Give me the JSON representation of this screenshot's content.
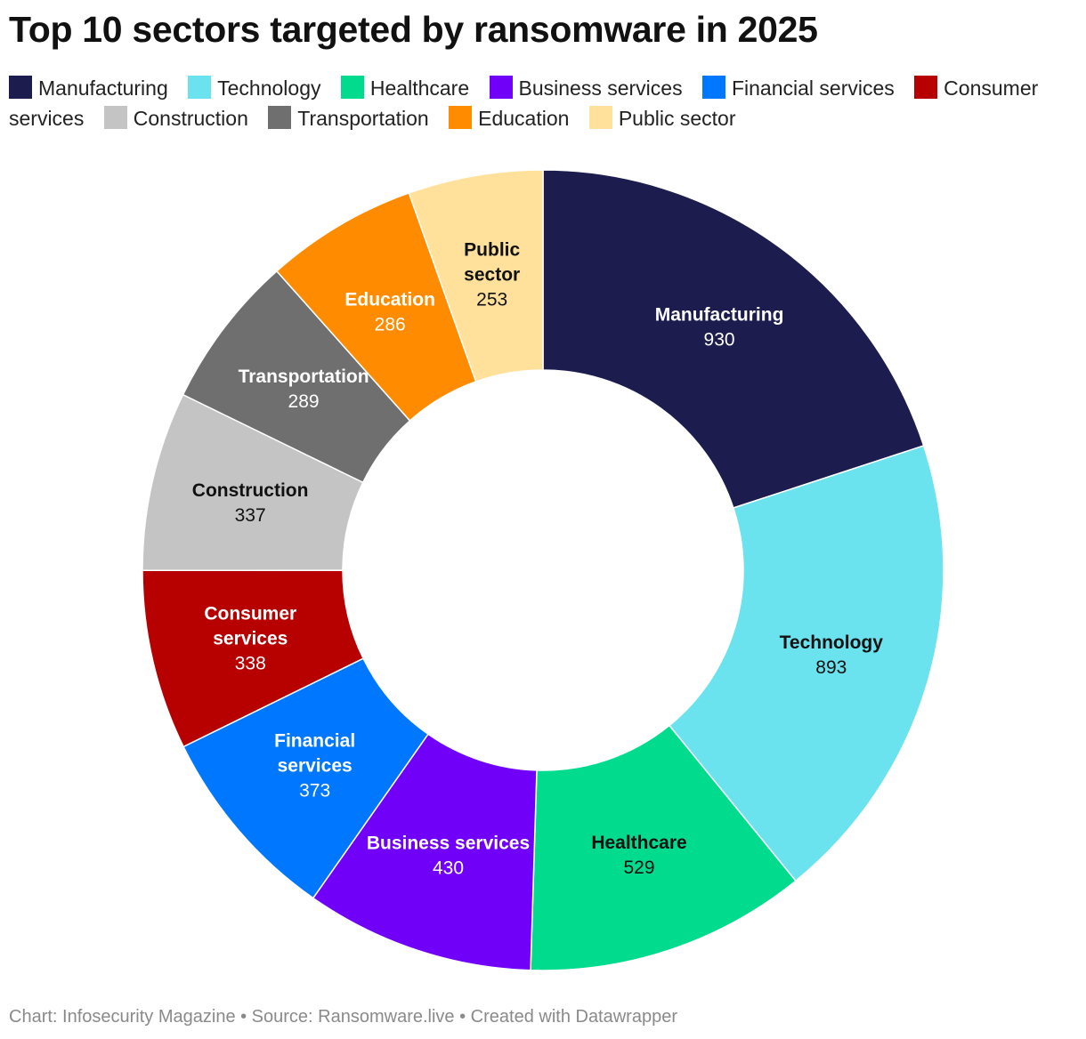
{
  "title": "Top 10 sectors targeted by ransomware in 2025",
  "footer": "Chart: Infosecurity Magazine • Source: Ransomware.live • Created with Datawrapper",
  "chart_data": {
    "type": "pie",
    "style": "donut",
    "title": "Top 10 sectors targeted by ransomware in 2025",
    "categories": [
      "Manufacturing",
      "Technology",
      "Healthcare",
      "Business services",
      "Financial services",
      "Consumer services",
      "Construction",
      "Transportation",
      "Education",
      "Public sector"
    ],
    "values": [
      930,
      893,
      529,
      430,
      373,
      338,
      337,
      289,
      286,
      253
    ],
    "colors": [
      "#1c1c4e",
      "#6be3ee",
      "#00db8e",
      "#7100f8",
      "#0077ff",
      "#b70000",
      "#c4c4c4",
      "#6f6f6f",
      "#ff8c00",
      "#ffe19c"
    ],
    "label_colors": [
      "#ffffff",
      "#111111",
      "#111111",
      "#ffffff",
      "#ffffff",
      "#ffffff",
      "#111111",
      "#ffffff",
      "#ffffff",
      "#111111"
    ],
    "label_lines": [
      [
        "Manufacturing"
      ],
      [
        "Technology"
      ],
      [
        "Healthcare"
      ],
      [
        "Business services"
      ],
      [
        "Financial",
        "services"
      ],
      [
        "Consumer",
        "services"
      ],
      [
        "Construction"
      ],
      [
        "Transportation"
      ],
      [
        "Education"
      ],
      [
        "Public",
        "sector"
      ]
    ],
    "legend_position": "top"
  }
}
